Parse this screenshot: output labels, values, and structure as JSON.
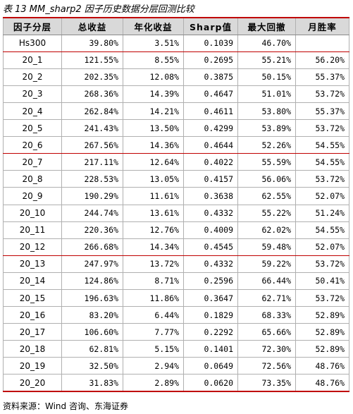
{
  "title": "表 13 MM_sharp2 因子历史数据分层回测比较",
  "source": "资料来源：Wind 咨询、东海证券",
  "columns": [
    "因子分层",
    "总收益",
    "年化收益",
    "Sharp值",
    "最大回撤",
    "月胜率"
  ],
  "rows": [
    [
      "Hs300",
      "39.80%",
      "3.51%",
      "0.1039",
      "46.70%",
      ""
    ],
    [
      "20_1",
      "121.55%",
      "8.55%",
      "0.2695",
      "55.21%",
      "56.20%"
    ],
    [
      "20_2",
      "202.35%",
      "12.08%",
      "0.3875",
      "50.15%",
      "55.37%"
    ],
    [
      "20_3",
      "268.36%",
      "14.39%",
      "0.4647",
      "51.01%",
      "53.72%"
    ],
    [
      "20_4",
      "262.84%",
      "14.21%",
      "0.4611",
      "53.80%",
      "55.37%"
    ],
    [
      "20_5",
      "241.43%",
      "13.50%",
      "0.4299",
      "53.89%",
      "53.72%"
    ],
    [
      "20_6",
      "267.56%",
      "14.36%",
      "0.4644",
      "52.26%",
      "54.55%"
    ],
    [
      "20_7",
      "217.11%",
      "12.64%",
      "0.4022",
      "55.59%",
      "54.55%"
    ],
    [
      "20_8",
      "228.53%",
      "13.05%",
      "0.4157",
      "56.06%",
      "53.72%"
    ],
    [
      "20_9",
      "190.29%",
      "11.61%",
      "0.3638",
      "62.55%",
      "52.07%"
    ],
    [
      "20_10",
      "244.74%",
      "13.61%",
      "0.4332",
      "55.22%",
      "51.24%"
    ],
    [
      "20_11",
      "220.36%",
      "12.76%",
      "0.4009",
      "62.02%",
      "54.55%"
    ],
    [
      "20_12",
      "266.68%",
      "14.34%",
      "0.4545",
      "59.48%",
      "52.07%"
    ],
    [
      "20_13",
      "247.97%",
      "13.72%",
      "0.4332",
      "59.22%",
      "53.72%"
    ],
    [
      "20_14",
      "124.86%",
      "8.71%",
      "0.2596",
      "66.44%",
      "50.41%"
    ],
    [
      "20_15",
      "196.63%",
      "11.86%",
      "0.3647",
      "62.71%",
      "53.72%"
    ],
    [
      "20_16",
      "83.20%",
      "6.44%",
      "0.1829",
      "68.33%",
      "52.89%"
    ],
    [
      "20_17",
      "106.60%",
      "7.77%",
      "0.2292",
      "65.66%",
      "52.89%"
    ],
    [
      "20_18",
      "62.81%",
      "5.15%",
      "0.1401",
      "72.30%",
      "52.89%"
    ],
    [
      "20_19",
      "32.50%",
      "2.94%",
      "0.0649",
      "72.56%",
      "48.76%"
    ],
    [
      "20_20",
      "31.83%",
      "2.89%",
      "0.0620",
      "73.35%",
      "48.76%"
    ]
  ],
  "colors": {
    "rule": "#c00000",
    "header_bg": "#d9d9d9",
    "grid": "#b0b0b0"
  }
}
